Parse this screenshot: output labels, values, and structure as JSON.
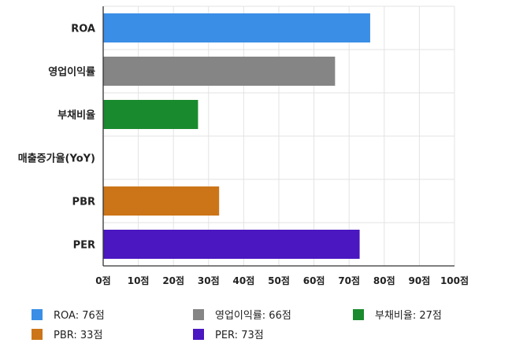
{
  "chart_data": {
    "type": "bar",
    "orientation": "horizontal",
    "categories": [
      "ROA",
      "영업이익률",
      "부채비율",
      "매출증가율(YoY)",
      "PBR",
      "PER"
    ],
    "values": [
      76,
      66,
      27,
      0,
      33,
      73
    ],
    "colors": [
      "#3a8ee6",
      "#858585",
      "#1a8a2e",
      "#ffffff",
      "#cc7518",
      "#4a17c0"
    ],
    "xlim": [
      0,
      100
    ],
    "x_ticks": [
      "0점",
      "10점",
      "20점",
      "30점",
      "40점",
      "50점",
      "60점",
      "70점",
      "80점",
      "90점",
      "100점"
    ],
    "grid": true,
    "legend": {
      "placement": "bottom",
      "items": [
        {
          "label": "ROA: 76점",
          "color": "#3a8ee6"
        },
        {
          "label": "영업이익률: 66점",
          "color": "#858585"
        },
        {
          "label": "부채비율: 27점",
          "color": "#1a8a2e"
        },
        {
          "label": "PBR: 33점",
          "color": "#cc7518"
        },
        {
          "label": "PER: 73점",
          "color": "#4a17c0"
        }
      ]
    }
  }
}
